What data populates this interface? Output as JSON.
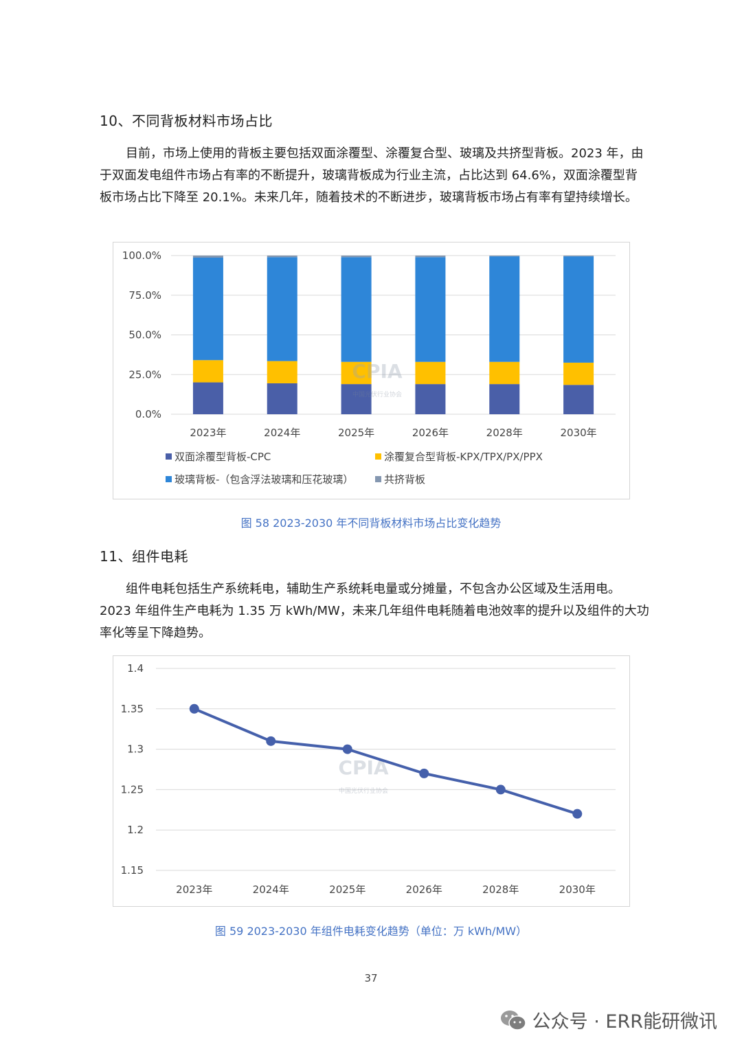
{
  "section10": {
    "heading": "10、不同背板材料市场占比",
    "paragraph": "目前，市场上使用的背板主要包括双面涂覆型、涂覆复合型、玻璃及共挤型背板。2023 年，由于双面发电组件市场占有率的不断提升，玻璃背板成为行业主流，占比达到 64.6%，双面涂覆型背板市场占比下降至 20.1%。未来几年，随着技术的不断进步，玻璃背板市场占有率有望持续增长。"
  },
  "figure58": {
    "caption": "图 58 2023-2030 年不同背板材料市场占比变化趋势",
    "watermark_logo": "CPIA",
    "watermark_sub": "中国光伏行业协会"
  },
  "section11": {
    "heading": "11、组件电耗",
    "paragraph": "组件电耗包括生产系统耗电，辅助生产系统耗电量或分摊量，不包含办公区域及生活用电。2023 年组件生产电耗为 1.35 万 kWh/MW，未来几年组件电耗随着电池效率的提升以及组件的大功率化等呈下降趋势。"
  },
  "figure59": {
    "caption": "图 59   2023-2030 年组件电耗变化趋势（单位：万 kWh/MW）",
    "watermark_logo": "CPIA",
    "watermark_sub": "中国光伏行业协会"
  },
  "page_number": "37",
  "footer_watermark": "公众号 · ERR能研微讯",
  "chart_data": [
    {
      "type": "bar",
      "stacked": true,
      "categories": [
        "2023年",
        "2024年",
        "2025年",
        "2026年",
        "2028年",
        "2030年"
      ],
      "series": [
        {
          "name": "双面涂覆型背板-CPC",
          "color": "#4a5fa8",
          "values": [
            20.1,
            19.5,
            19.0,
            19.0,
            19.0,
            18.5
          ]
        },
        {
          "name": "涂覆复合型背板-KPX/TPX/PX/PPX",
          "color": "#ffc000",
          "values": [
            14.0,
            14.0,
            14.0,
            14.0,
            14.0,
            14.0
          ]
        },
        {
          "name": "玻璃背板-（包含浮法玻璃和压花玻璃）",
          "color": "#2e86d8",
          "values": [
            64.6,
            65.5,
            66.0,
            66.0,
            66.5,
            67.0
          ]
        },
        {
          "name": "共挤背板",
          "color": "#8497b0",
          "values": [
            1.3,
            1.0,
            1.0,
            1.0,
            0.5,
            0.5
          ]
        }
      ],
      "yticks": [
        "0.0%",
        "25.0%",
        "50.0%",
        "75.0%",
        "100.0%"
      ],
      "ylim": [
        0,
        100
      ],
      "legend": "bottom"
    },
    {
      "type": "line",
      "categories": [
        "2023年",
        "2024年",
        "2025年",
        "2026年",
        "2028年",
        "2030年"
      ],
      "series": [
        {
          "name": "组件电耗",
          "color": "#4560ab",
          "values": [
            1.35,
            1.31,
            1.3,
            1.27,
            1.25,
            1.22
          ]
        }
      ],
      "yticks": [
        "1.15",
        "1.2",
        "1.25",
        "1.3",
        "1.35",
        "1.4"
      ],
      "ylim": [
        1.15,
        1.4
      ],
      "legend": "none"
    }
  ]
}
